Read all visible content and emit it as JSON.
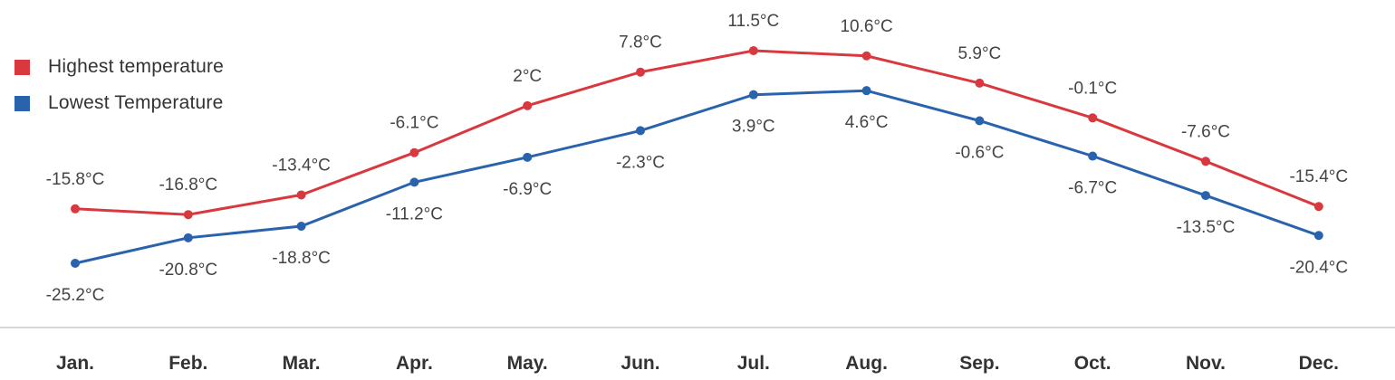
{
  "chart_data": {
    "type": "line",
    "categories": [
      "Jan.",
      "Feb.",
      "Mar.",
      "Apr.",
      "May.",
      "Jun.",
      "Jul.",
      "Aug.",
      "Sep.",
      "Oct.",
      "Nov.",
      "Dec."
    ],
    "series": [
      {
        "name": "Highest temperature",
        "color": "#d9383f",
        "values": [
          -15.8,
          -16.8,
          -13.4,
          -6.1,
          2,
          7.8,
          11.5,
          10.6,
          5.9,
          -0.1,
          -7.6,
          -15.4
        ],
        "labels": [
          "-15.8°C",
          "-16.8°C",
          "-13.4°C",
          "-6.1°C",
          "2°C",
          "7.8°C",
          "11.5°C",
          "10.6°C",
          "5.9°C",
          "-0.1°C",
          "-7.6°C",
          "-15.4°C"
        ],
        "label_position": "above"
      },
      {
        "name": "Lowest Temperature",
        "color": "#2a63ad",
        "values": [
          -25.2,
          -20.8,
          -18.8,
          -11.2,
          -6.9,
          -2.3,
          3.9,
          4.6,
          -0.6,
          -6.7,
          -13.5,
          -20.4
        ],
        "labels": [
          "-25.2°C",
          "-20.8°C",
          "-18.8°C",
          "-11.2°C",
          "-6.9°C",
          "-2.3°C",
          "3.9°C",
          "4.6°C",
          "-0.6°C",
          "-6.7°C",
          "-13.5°C",
          "-20.4°C"
        ],
        "label_position": "below"
      }
    ],
    "title": "",
    "xlabel": "",
    "ylabel": "",
    "grid": false,
    "legend": "top-left"
  }
}
